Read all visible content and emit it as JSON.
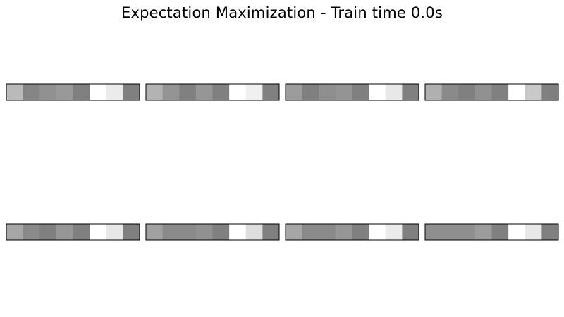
{
  "title": "Expectation Maximization - Train time 0.0s",
  "chart_data": {
    "type": "heatmap",
    "title": "Expectation Maximization - Train time 0.0s",
    "colormap": "gray",
    "grid": false,
    "axes_visible": false,
    "layout": {
      "rows": 2,
      "cols": 4
    },
    "panels": [
      {
        "values": [
          0.73,
          0.52,
          0.57,
          0.6,
          0.5,
          1.0,
          0.92,
          0.5
        ]
      },
      {
        "values": [
          0.7,
          0.58,
          0.5,
          0.59,
          0.5,
          1.0,
          0.94,
          0.5
        ]
      },
      {
        "values": [
          0.61,
          0.5,
          0.56,
          0.58,
          0.5,
          1.0,
          0.91,
          0.5
        ]
      },
      {
        "values": [
          0.69,
          0.54,
          0.5,
          0.57,
          0.5,
          1.0,
          0.79,
          0.5
        ]
      },
      {
        "values": [
          0.65,
          0.54,
          0.5,
          0.59,
          0.5,
          1.0,
          0.91,
          0.5
        ]
      },
      {
        "values": [
          0.63,
          0.54,
          0.54,
          0.57,
          0.5,
          1.0,
          0.87,
          0.5
        ]
      },
      {
        "values": [
          0.65,
          0.54,
          0.54,
          0.59,
          0.5,
          1.0,
          0.92,
          0.5
        ]
      },
      {
        "values": [
          0.56,
          0.56,
          0.56,
          0.61,
          0.5,
          1.0,
          0.91,
          0.5
        ]
      }
    ]
  }
}
